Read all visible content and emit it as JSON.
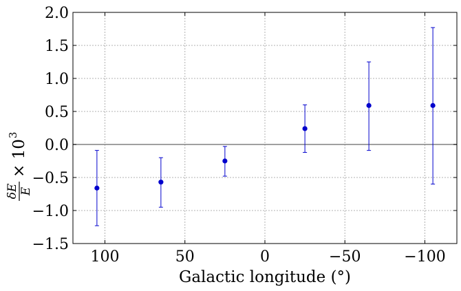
{
  "chart_data": {
    "type": "scatter",
    "xlabel": "Galactic longitude (°)",
    "ylabel": {
      "numerator": "δE",
      "denominator": "E",
      "multiplier": "× 10",
      "exponent": "3"
    },
    "xlim": [
      120,
      -120
    ],
    "ylim": [
      -1.5,
      2.0
    ],
    "x_reversed": true,
    "grid": true,
    "zero_line": true,
    "xticks": [
      {
        "value": 100,
        "label": "100"
      },
      {
        "value": 50,
        "label": "50"
      },
      {
        "value": 0,
        "label": "0"
      },
      {
        "value": -50,
        "label": "−50"
      },
      {
        "value": -100,
        "label": "−100"
      }
    ],
    "yticks": [
      {
        "value": 2.0,
        "label": "2.0"
      },
      {
        "value": 1.5,
        "label": "1.5"
      },
      {
        "value": 1.0,
        "label": "1.0"
      },
      {
        "value": 0.5,
        "label": "0.5"
      },
      {
        "value": 0.0,
        "label": "0.0"
      },
      {
        "value": -0.5,
        "label": "−0.5"
      },
      {
        "value": -1.0,
        "label": "−1.0"
      },
      {
        "value": -1.5,
        "label": "−1.5"
      }
    ],
    "series": [
      {
        "color": "#0000cc",
        "points": [
          {
            "x": 105,
            "y": -0.66,
            "err_low": -1.23,
            "err_high": -0.09
          },
          {
            "x": 65,
            "y": -0.57,
            "err_low": -0.95,
            "err_high": -0.2
          },
          {
            "x": 25,
            "y": -0.25,
            "err_low": -0.48,
            "err_high": -0.03
          },
          {
            "x": -25,
            "y": 0.24,
            "err_low": -0.12,
            "err_high": 0.6
          },
          {
            "x": -65,
            "y": 0.59,
            "err_low": -0.09,
            "err_high": 1.25
          },
          {
            "x": -105,
            "y": 0.59,
            "err_low": -0.6,
            "err_high": 1.77
          }
        ]
      }
    ]
  }
}
